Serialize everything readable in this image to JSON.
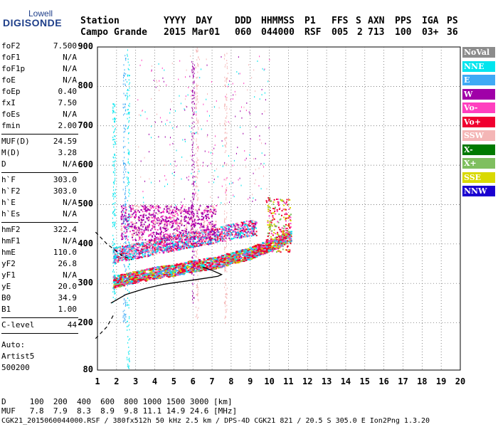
{
  "logo": {
    "top": "Lowell",
    "main": "DIGISONDE"
  },
  "header": {
    "row1": [
      "Station",
      "YYYY",
      "DAY",
      "DDD",
      "HHMMSS",
      "P1",
      "FFS",
      "S",
      "AXN",
      "PPS",
      "IGA",
      "PS"
    ],
    "row2": [
      "Campo Grande",
      "2015",
      "Mar01",
      "060",
      "044000",
      "RSF",
      "005",
      "2",
      "713",
      "100",
      "03+",
      "36"
    ]
  },
  "params": [
    {
      "k": "foF2",
      "v": "7.500"
    },
    {
      "k": "foF1",
      "v": "N/A"
    },
    {
      "k": "foF1p",
      "v": "N/A"
    },
    {
      "k": "foE",
      "v": "N/A"
    },
    {
      "k": "foEp",
      "v": "0.40"
    },
    {
      "k": "fxI",
      "v": "7.50"
    },
    {
      "k": "foEs",
      "v": "N/A"
    },
    {
      "k": "fmin",
      "v": "2.00"
    },
    {
      "k": "MUF(D)",
      "v": "24.59"
    },
    {
      "k": "M(D)",
      "v": "3.28"
    },
    {
      "k": "D",
      "v": "N/A"
    },
    {
      "k": "h`F",
      "v": "303.0"
    },
    {
      "k": "h`F2",
      "v": "303.0"
    },
    {
      "k": "h`E",
      "v": "N/A"
    },
    {
      "k": "h`Es",
      "v": "N/A"
    },
    {
      "k": "hmF2",
      "v": "322.4"
    },
    {
      "k": "hmF1",
      "v": "N/A"
    },
    {
      "k": "hmE",
      "v": "110.0"
    },
    {
      "k": "yF2",
      "v": "26.8"
    },
    {
      "k": "yF1",
      "v": "N/A"
    },
    {
      "k": "yE",
      "v": "20.0"
    },
    {
      "k": "B0",
      "v": "34.9"
    },
    {
      "k": "B1",
      "v": "1.00"
    },
    {
      "k": "C-level",
      "v": "44"
    }
  ],
  "auto": [
    "Auto:",
    "Artist5",
    "500200"
  ],
  "legend": [
    {
      "label": "NoVal",
      "color": "#8c8c8c"
    },
    {
      "label": "NNE",
      "color": "#00e5ee"
    },
    {
      "label": "E",
      "color": "#3fa9f5"
    },
    {
      "label": "W",
      "color": "#a000a8"
    },
    {
      "label": "Vo-",
      "color": "#ff3fbf"
    },
    {
      "label": "Vo+",
      "color": "#f00030"
    },
    {
      "label": "SSW",
      "color": "#f4b6b6"
    },
    {
      "label": "X-",
      "color": "#007a00"
    },
    {
      "label": "X+",
      "color": "#7fbf5f"
    },
    {
      "label": "SSE",
      "color": "#d9d900"
    },
    {
      "label": "NNW",
      "color": "#1a00d0"
    }
  ],
  "footer": {
    "line1": "D     100  200  400  600  800 1000 1500 3000 [km]",
    "line2": "MUF   7.8  7.9  8.3  8.9  9.8 11.1 14.9 24.6 [MHz]",
    "line3": "CGK21_2015060044000.RSF / 380fx512h 50 kHz 2.5 km / DPS-4D CGK21 821 / 20.5 S 305.0 E Ion2Png 1.3.20"
  },
  "chart_data": {
    "type": "scatter",
    "xlim": [
      1,
      20
    ],
    "ylim": [
      80,
      900
    ],
    "xticks": [
      "1",
      "2",
      "3",
      "4",
      "5",
      "6",
      "7",
      "8",
      "9",
      "10",
      "11",
      "12",
      "13",
      "14",
      "15",
      "16",
      "17",
      "18",
      "19",
      "20"
    ],
    "yticks": [
      "80",
      "200",
      "300",
      "400",
      "500",
      "600",
      "700",
      "800",
      "900"
    ],
    "profile_solid": [
      [
        1.7,
        250
      ],
      [
        2.5,
        272
      ],
      [
        3.5,
        287
      ],
      [
        4.5,
        298
      ],
      [
        5.5,
        305
      ],
      [
        6.5,
        312
      ],
      [
        7.3,
        318
      ],
      [
        7.5,
        322.4
      ],
      [
        7.0,
        333
      ],
      [
        6.5,
        342
      ]
    ],
    "profile_dashed_upper": [
      [
        0.9,
        430
      ],
      [
        1.5,
        400
      ],
      [
        2.3,
        370
      ],
      [
        2.8,
        360
      ]
    ],
    "profile_dashed_lower": [
      [
        0.9,
        160
      ],
      [
        1.5,
        190
      ],
      [
        1.9,
        225
      ]
    ],
    "trace_lower": [
      [
        1.8,
        305
      ],
      [
        3,
        318
      ],
      [
        4,
        328
      ],
      [
        5,
        335
      ],
      [
        6,
        345
      ],
      [
        7,
        352
      ],
      [
        8,
        365
      ],
      [
        9,
        378
      ],
      [
        10,
        398
      ],
      [
        11,
        420
      ]
    ],
    "trace_upper": [
      [
        1.8,
        372
      ],
      [
        3,
        384
      ],
      [
        4,
        394
      ],
      [
        5,
        404
      ],
      [
        6,
        414
      ],
      [
        7,
        422
      ],
      [
        8,
        432
      ],
      [
        9,
        442
      ]
    ]
  }
}
